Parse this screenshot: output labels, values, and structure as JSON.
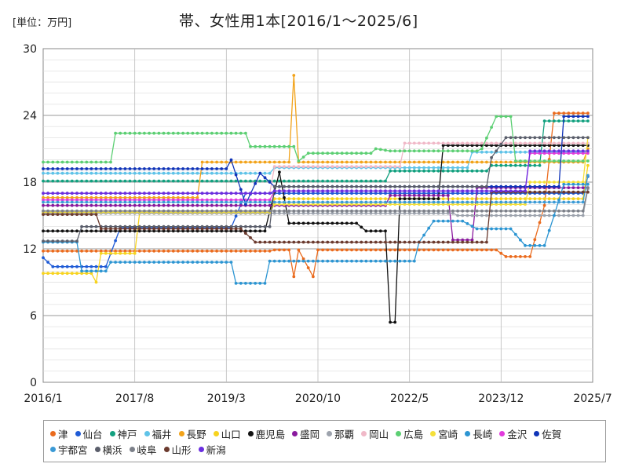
{
  "header": {
    "unit": "[単位：万円]",
    "title": "帯、女性用1本[2016/1～2025/6]"
  },
  "chart_data": {
    "type": "line",
    "title": "帯、女性用1本[2016/1～2025/6]",
    "unit": "[単位：万円]",
    "x_range": [
      "2016-01",
      "2025-07"
    ],
    "x_ticks": [
      "2016/1",
      "2017/8",
      "2019/3",
      "2020/10",
      "2022/5",
      "2023/12",
      "2025/7"
    ],
    "ylim": [
      0,
      30
    ],
    "y_ticks": [
      "0",
      "6",
      "12",
      "18",
      "24",
      "30"
    ],
    "grid": true,
    "legend_position": "bottom",
    "series": [
      {
        "name": "津",
        "color": "#ea6b1e",
        "points": [
          [
            "2016-01",
            11.8
          ],
          [
            "2017-01",
            11.8
          ],
          [
            "2019-01",
            11.8
          ],
          [
            "2020-01",
            11.9
          ],
          [
            "2020-05",
            9.5
          ],
          [
            "2020-06",
            11.9
          ],
          [
            "2020-09",
            9.5
          ],
          [
            "2020-10",
            11.9
          ],
          [
            "2022-01",
            11.9
          ],
          [
            "2023-11",
            11.9
          ],
          [
            "2024-01",
            11.3
          ],
          [
            "2024-06",
            11.3
          ],
          [
            "2024-09",
            15.9
          ],
          [
            "2024-11",
            24.2
          ],
          [
            "2025-06",
            24.2
          ]
        ]
      },
      {
        "name": "仙台",
        "color": "#1f5bd6",
        "points": [
          [
            "2016-01",
            11.2
          ],
          [
            "2016-03",
            10.4
          ],
          [
            "2017-02",
            10.4
          ],
          [
            "2017-05",
            13.9
          ],
          [
            "2019-04",
            13.9
          ],
          [
            "2019-07",
            17.0
          ],
          [
            "2022-01",
            17.0
          ],
          [
            "2025-06",
            18.5
          ]
        ]
      },
      {
        "name": "神戸",
        "color": "#12a07f",
        "points": [
          [
            "2016-01",
            18.1
          ],
          [
            "2017-01",
            18.1
          ],
          [
            "2020-01",
            18.1
          ],
          [
            "2022-01",
            19.0
          ],
          [
            "2023-10",
            19.5
          ],
          [
            "2024-09",
            23.5
          ],
          [
            "2025-06",
            23.5
          ]
        ]
      },
      {
        "name": "福井",
        "color": "#5fc3e8",
        "points": [
          [
            "2016-01",
            18.8
          ],
          [
            "2019-01",
            18.8
          ],
          [
            "2020-01",
            19.3
          ],
          [
            "2022-06",
            19.3
          ],
          [
            "2023-06",
            20.7
          ],
          [
            "2025-06",
            20.7
          ]
        ]
      },
      {
        "name": "長野",
        "color": "#f2a31a",
        "points": [
          [
            "2016-01",
            16.6
          ],
          [
            "2018-09",
            16.6
          ],
          [
            "2018-10",
            19.8
          ],
          [
            "2020-01",
            19.8
          ],
          [
            "2020-05",
            27.6
          ],
          [
            "2020-06",
            19.8
          ],
          [
            "2022-01",
            19.8
          ],
          [
            "2025-06",
            21.0
          ]
        ]
      },
      {
        "name": "山口",
        "color": "#f7d31e",
        "points": [
          [
            "2016-01",
            9.8
          ],
          [
            "2016-11",
            9.8
          ],
          [
            "2016-12",
            9.0
          ],
          [
            "2017-01",
            11.6
          ],
          [
            "2017-08",
            11.6
          ],
          [
            "2017-09",
            15.2
          ],
          [
            "2019-01",
            15.2
          ],
          [
            "2020-01",
            16.5
          ],
          [
            "2022-06",
            16.5
          ],
          [
            "2024-06",
            16.5
          ],
          [
            "2025-06",
            19.5
          ]
        ]
      },
      {
        "name": "鹿児島",
        "color": "#111111",
        "points": [
          [
            "2016-01",
            13.6
          ],
          [
            "2019-01",
            13.6
          ],
          [
            "2019-11",
            13.6
          ],
          [
            "2020-02",
            18.9
          ],
          [
            "2020-04",
            14.3
          ],
          [
            "2021-06",
            14.3
          ],
          [
            "2021-08",
            13.6
          ],
          [
            "2022-01",
            5.4
          ],
          [
            "2022-02",
            5.4
          ],
          [
            "2022-03",
            16.5
          ],
          [
            "2022-11",
            16.5
          ],
          [
            "2022-12",
            21.3
          ],
          [
            "2025-06",
            21.3
          ]
        ]
      },
      {
        "name": "盛岡",
        "color": "#8a1a9e",
        "points": [
          [
            "2016-01",
            15.9
          ],
          [
            "2020-01",
            15.9
          ],
          [
            "2022-01",
            16.8
          ],
          [
            "2023-01",
            16.8
          ],
          [
            "2023-02",
            12.8
          ],
          [
            "2023-06",
            12.8
          ],
          [
            "2023-07",
            17.5
          ],
          [
            "2025-06",
            17.5
          ]
        ]
      },
      {
        "name": "那覇",
        "color": "#9da3ad",
        "points": [
          [
            "2016-01",
            15.2
          ],
          [
            "2019-01",
            15.2
          ],
          [
            "2022-06",
            15.2
          ],
          [
            "2023-03",
            15.0
          ],
          [
            "2025-06",
            17.4
          ]
        ]
      },
      {
        "name": "岡山",
        "color": "#f0b9c8",
        "points": [
          [
            "2016-01",
            17.0
          ],
          [
            "2019-01",
            17.0
          ],
          [
            "2020-01",
            19.4
          ],
          [
            "2022-04",
            21.5
          ],
          [
            "2025-06",
            21.5
          ]
        ]
      },
      {
        "name": "広島",
        "color": "#5ccf73",
        "points": [
          [
            "2016-01",
            19.8
          ],
          [
            "2017-03",
            19.8
          ],
          [
            "2017-04",
            22.4
          ],
          [
            "2019-07",
            22.4
          ],
          [
            "2019-08",
            21.2
          ],
          [
            "2020-06",
            19.9
          ],
          [
            "2020-08",
            20.6
          ],
          [
            "2021-09",
            20.6
          ],
          [
            "2021-10",
            21.0
          ],
          [
            "2022-01",
            20.8
          ],
          [
            "2023-08",
            21.0
          ],
          [
            "2023-11",
            23.9
          ],
          [
            "2024-03",
            19.9
          ],
          [
            "2025-06",
            19.9
          ]
        ]
      },
      {
        "name": "宮崎",
        "color": "#f5e03a",
        "points": [
          [
            "2016-01",
            15.3
          ],
          [
            "2020-01",
            16.0
          ],
          [
            "2022-01",
            16.0
          ],
          [
            "2024-06",
            18.0
          ],
          [
            "2025-06",
            22.0
          ]
        ]
      },
      {
        "name": "長崎",
        "color": "#2c95d2",
        "points": [
          [
            "2016-01",
            12.6
          ],
          [
            "2016-04",
            12.6
          ],
          [
            "2016-09",
            10.0
          ],
          [
            "2017-03",
            10.8
          ],
          [
            "2019-04",
            10.8
          ],
          [
            "2019-05",
            8.9
          ],
          [
            "2019-11",
            8.9
          ],
          [
            "2019-12",
            10.9
          ],
          [
            "2021-06",
            10.9
          ],
          [
            "2022-06",
            10.9
          ],
          [
            "2022-07",
            12.6
          ],
          [
            "2022-10",
            14.5
          ],
          [
            "2023-04",
            14.5
          ],
          [
            "2023-07",
            13.8
          ],
          [
            "2024-02",
            13.8
          ],
          [
            "2024-05",
            12.3
          ],
          [
            "2024-09",
            12.3
          ],
          [
            "2024-11",
            15.0
          ],
          [
            "2025-01",
            17.8
          ],
          [
            "2025-06",
            17.8
          ]
        ]
      },
      {
        "name": "金沢",
        "color": "#e13adc",
        "points": [
          [
            "2016-01",
            16.4
          ],
          [
            "2019-01",
            16.4
          ],
          [
            "2020-01",
            17.2
          ],
          [
            "2022-01",
            17.2
          ],
          [
            "2024-06",
            20.6
          ],
          [
            "2025-06",
            20.6
          ]
        ]
      },
      {
        "name": "佐賀",
        "color": "#1034b8",
        "points": [
          [
            "2016-01",
            19.2
          ],
          [
            "2019-03",
            19.2
          ],
          [
            "2019-04",
            20.0
          ],
          [
            "2019-07",
            16.0
          ],
          [
            "2019-10",
            18.8
          ],
          [
            "2020-01",
            17.6
          ],
          [
            "2022-01",
            17.6
          ],
          [
            "2024-01",
            17.6
          ],
          [
            "2024-06",
            17.6
          ],
          [
            "2025-01",
            23.9
          ],
          [
            "2025-06",
            23.9
          ]
        ]
      },
      {
        "name": "宇都宮",
        "color": "#3b9ad6",
        "points": [
          [
            "2016-01",
            16.2
          ],
          [
            "2017-01",
            16.2
          ],
          [
            "2019-01",
            16.2
          ],
          [
            "2020-01",
            16.2
          ],
          [
            "2022-01",
            16.2
          ],
          [
            "2024-06",
            16.2
          ],
          [
            "2025-06",
            18.6
          ]
        ]
      },
      {
        "name": "横浜",
        "color": "#5a5e6b",
        "points": [
          [
            "2016-01",
            12.7
          ],
          [
            "2016-08",
            12.7
          ],
          [
            "2016-09",
            14.0
          ],
          [
            "2019-01",
            14.0
          ],
          [
            "2020-01",
            17.6
          ],
          [
            "2022-01",
            17.6
          ],
          [
            "2023-10",
            20.2
          ],
          [
            "2024-01",
            22.0
          ],
          [
            "2025-06",
            22.0
          ]
        ]
      },
      {
        "name": "岐阜",
        "color": "#7c8089",
        "points": [
          [
            "2016-01",
            15.4
          ],
          [
            "2019-01",
            15.4
          ],
          [
            "2020-01",
            15.4
          ],
          [
            "2022-01",
            15.4
          ],
          [
            "2025-06",
            17.5
          ]
        ]
      },
      {
        "name": "山形",
        "color": "#6b3a2e",
        "points": [
          [
            "2016-01",
            15.1
          ],
          [
            "2016-12",
            15.1
          ],
          [
            "2017-01",
            13.8
          ],
          [
            "2019-06",
            13.8
          ],
          [
            "2019-09",
            12.6
          ],
          [
            "2020-06",
            12.6
          ],
          [
            "2022-01",
            12.6
          ],
          [
            "2023-06",
            12.6
          ],
          [
            "2023-10",
            17.1
          ],
          [
            "2025-06",
            17.1
          ]
        ]
      },
      {
        "name": "新潟",
        "color": "#6a2ee0",
        "points": [
          [
            "2016-01",
            17.0
          ],
          [
            "2019-01",
            17.0
          ],
          [
            "2020-01",
            17.2
          ],
          [
            "2022-01",
            17.2
          ],
          [
            "2024-01",
            17.2
          ],
          [
            "2024-06",
            20.8
          ],
          [
            "2025-06",
            20.8
          ]
        ]
      }
    ]
  }
}
